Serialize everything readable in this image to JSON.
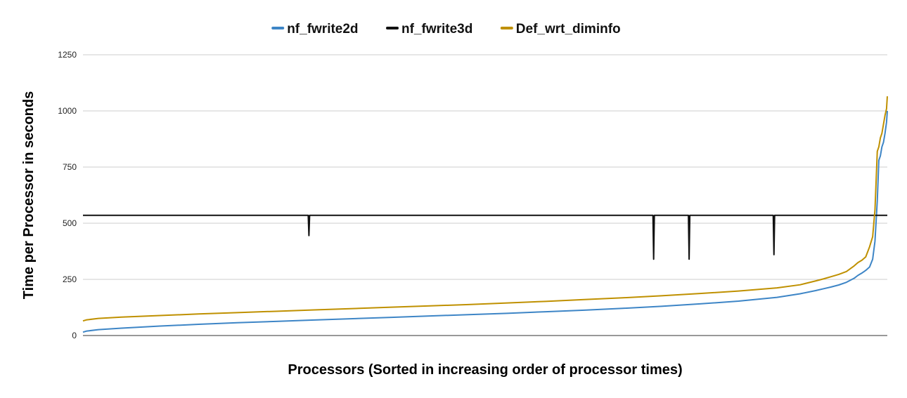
{
  "chart_data": {
    "type": "line",
    "title": "",
    "xlabel": "Processors (Sorted in increasing order of processor times)",
    "ylabel": "Time per Processor in seconds",
    "ylim": [
      0,
      1250
    ],
    "y_ticks": [
      "0",
      "250",
      "500",
      "750",
      "1000",
      "1250"
    ],
    "grid": true,
    "legend_position": "top",
    "x": [
      0,
      5,
      20,
      50,
      100,
      150,
      200,
      250,
      300,
      350,
      400,
      450,
      500,
      550,
      600,
      650,
      700,
      750,
      800,
      850,
      900,
      930,
      950,
      960,
      970,
      980,
      990,
      1000,
      1005,
      1010,
      1015,
      1020,
      1024,
      1027,
      1030,
      1032,
      1034,
      1036,
      1038,
      1040,
      1042,
      1043
    ],
    "series": [
      {
        "name": "nf_fwrite2d",
        "color": "#3d85c6",
        "values": [
          15,
          20,
          26,
          33,
          42,
          50,
          57,
          63,
          69,
          75,
          81,
          87,
          93,
          99,
          106,
          113,
          121,
          130,
          141,
          153,
          170,
          186,
          200,
          208,
          216,
          225,
          237,
          255,
          268,
          278,
          290,
          305,
          340,
          420,
          600,
          780,
          800,
          840,
          860,
          900,
          950,
          1000
        ]
      },
      {
        "name": "nf_fwrite3d",
        "color": "#111111",
        "values": [
          535,
          535,
          535,
          535,
          535,
          535,
          535,
          535,
          535,
          535,
          535,
          535,
          535,
          535,
          535,
          535,
          535,
          535,
          535,
          535,
          535,
          535,
          535,
          535,
          535,
          535,
          535,
          535,
          535,
          535,
          535,
          535,
          535,
          535,
          535,
          535,
          535,
          535,
          535,
          535,
          535,
          535
        ],
        "dips": [
          {
            "x": 293,
            "y": 445
          },
          {
            "x": 740,
            "y": 340
          },
          {
            "x": 786,
            "y": 340
          },
          {
            "x": 896,
            "y": 360
          }
        ]
      },
      {
        "name": "Def_wrt_diminfo",
        "color": "#bf9000",
        "values": [
          65,
          70,
          76,
          82,
          89,
          96,
          102,
          108,
          114,
          120,
          126,
          132,
          138,
          145,
          152,
          160,
          168,
          177,
          187,
          198,
          212,
          226,
          243,
          252,
          262,
          272,
          285,
          310,
          325,
          335,
          350,
          395,
          440,
          560,
          820,
          840,
          880,
          900,
          940,
          980,
          1010,
          1065
        ]
      }
    ]
  }
}
